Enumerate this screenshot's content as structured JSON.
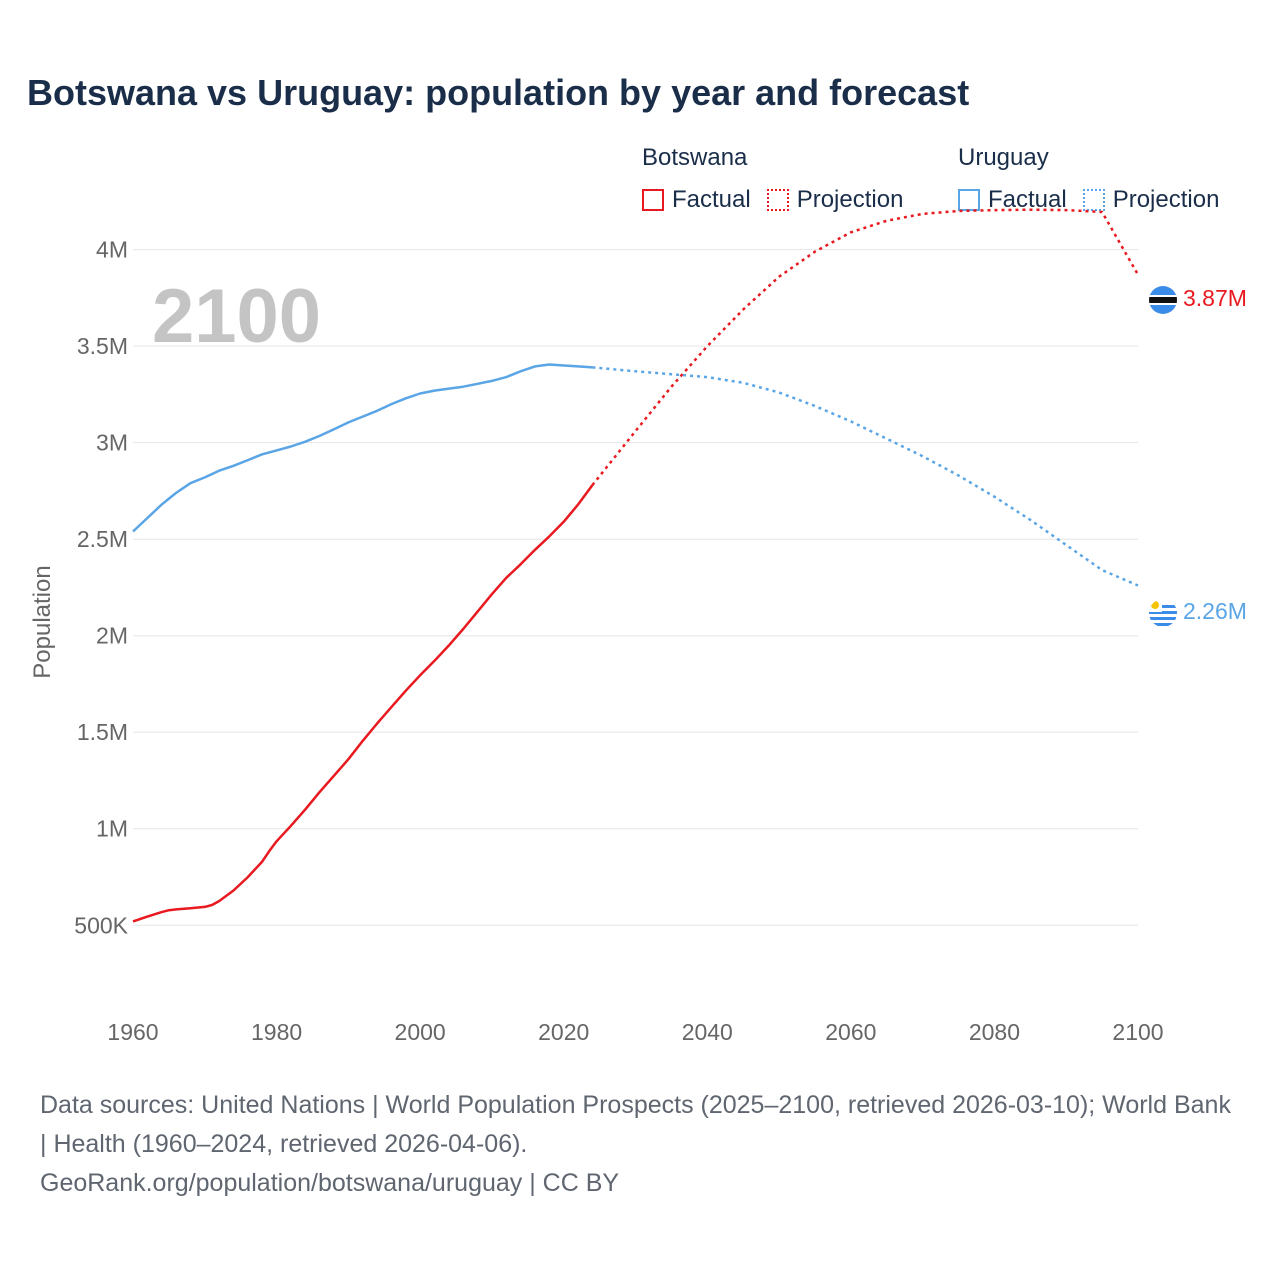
{
  "title": "Botswana vs Uruguay: population by year and forecast",
  "legend": {
    "groups": [
      {
        "name": "Botswana",
        "color": "#e8191f",
        "factual_label": "Factual",
        "projection_label": "Projection"
      },
      {
        "name": "Uruguay",
        "color": "#5aa5e6",
        "factual_label": "Factual",
        "projection_label": "Projection"
      }
    ]
  },
  "year_watermark": "2100",
  "end_labels": {
    "botswana": "3.87M",
    "uruguay": "2.26M"
  },
  "flags": {
    "botswana": "botswana-flag-icon",
    "uruguay": "uruguay-flag-icon"
  },
  "chart_data": {
    "type": "line",
    "title": "Botswana vs Uruguay: population by year and forecast",
    "xlabel": "",
    "ylabel": "Population",
    "xlim": [
      1960,
      2100
    ],
    "ylim": [
      320000,
      4050000
    ],
    "x_ticks": [
      1960,
      1980,
      2000,
      2020,
      2040,
      2060,
      2080,
      2100
    ],
    "x_tick_labels": [
      "1960",
      "1980",
      "2000",
      "2020",
      "2040",
      "2060",
      "2080",
      "2100"
    ],
    "y_ticks": [
      500000,
      1000000,
      1500000,
      2000000,
      2500000,
      3000000,
      3500000,
      4000000
    ],
    "y_tick_labels": [
      "500K",
      "1M",
      "1.5M",
      "2M",
      "2.5M",
      "3M",
      "3.5M",
      "4M"
    ],
    "grid": true,
    "series": [
      {
        "name": "Botswana",
        "color": "#e8191f",
        "factual": {
          "x": [
            1960,
            1962,
            1964,
            1965,
            1966,
            1968,
            1970,
            1971,
            1972,
            1974,
            1976,
            1978,
            1979,
            1980,
            1982,
            1984,
            1986,
            1988,
            1990,
            1992,
            1994,
            1996,
            1998,
            2000,
            2002,
            2004,
            2006,
            2008,
            2010,
            2012,
            2014,
            2016,
            2018,
            2020,
            2022,
            2024
          ],
          "y": [
            520000,
            545000,
            568000,
            578000,
            582000,
            588000,
            595000,
            605000,
            625000,
            680000,
            750000,
            830000,
            885000,
            935000,
            1015000,
            1100000,
            1190000,
            1275000,
            1360000,
            1455000,
            1545000,
            1630000,
            1715000,
            1795000,
            1870000,
            1950000,
            2035000,
            2125000,
            2215000,
            2300000,
            2370000,
            2445000,
            2515000,
            2590000,
            2680000,
            2780000
          ]
        },
        "projection": {
          "x": [
            2024,
            2030,
            2035,
            2040,
            2045,
            2050,
            2055,
            2060,
            2065,
            2070,
            2075,
            2080,
            2085,
            2090,
            2095,
            2100
          ],
          "y": [
            2780000,
            3060000,
            3290000,
            3500000,
            3690000,
            3860000,
            3990000,
            4090000,
            4150000,
            4185000,
            4200000,
            4205000,
            4207000,
            4205000,
            4195000,
            3870000
          ]
        }
      },
      {
        "name": "Uruguay",
        "color": "#5aa5e6",
        "factual": {
          "x": [
            1960,
            1962,
            1964,
            1966,
            1968,
            1970,
            1972,
            1974,
            1976,
            1978,
            1980,
            1982,
            1984,
            1986,
            1988,
            1990,
            1992,
            1994,
            1996,
            1998,
            2000,
            2002,
            2004,
            2006,
            2008,
            2010,
            2012,
            2014,
            2016,
            2018,
            2020,
            2022,
            2024
          ],
          "y": [
            2540000,
            2610000,
            2680000,
            2740000,
            2790000,
            2820000,
            2855000,
            2880000,
            2910000,
            2940000,
            2960000,
            2980000,
            3005000,
            3035000,
            3070000,
            3105000,
            3135000,
            3165000,
            3200000,
            3230000,
            3255000,
            3270000,
            3280000,
            3290000,
            3305000,
            3320000,
            3340000,
            3370000,
            3395000,
            3405000,
            3400000,
            3395000,
            3390000
          ]
        },
        "projection": {
          "x": [
            2024,
            2030,
            2035,
            2040,
            2045,
            2050,
            2055,
            2060,
            2065,
            2070,
            2075,
            2080,
            2085,
            2090,
            2095,
            2100
          ],
          "y": [
            3390000,
            3370000,
            3355000,
            3340000,
            3310000,
            3260000,
            3190000,
            3110000,
            3020000,
            2930000,
            2830000,
            2720000,
            2600000,
            2470000,
            2340000,
            2260000
          ]
        }
      }
    ]
  },
  "source": {
    "line1": "Data sources: United Nations | World Population Prospects (2025–2100, retrieved 2026-03-10); World Bank | Health (1960–2024, retrieved 2026-04-06).",
    "line2": "GeoRank.org/population/botswana/uruguay | CC BY"
  }
}
